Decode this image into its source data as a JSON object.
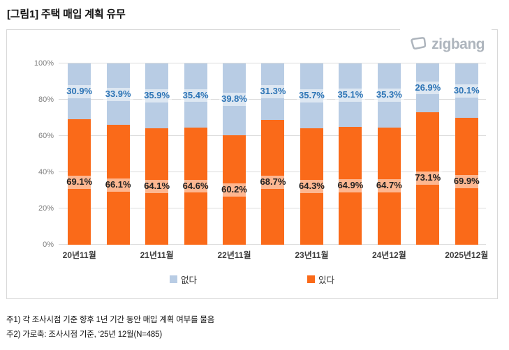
{
  "title": "[그림1] 주택 매입 계획 유무",
  "logo": {
    "brand": "zigbang"
  },
  "colors": {
    "yes_bar": "#fa6a19",
    "no_bar": "#b8cce4",
    "no_label_text": "#2e75b6",
    "yes_label_text": "#222222",
    "logo_gray": "#aeb5bd"
  },
  "chart_data": {
    "type": "bar",
    "stacked": true,
    "unit": "%",
    "title": "주택 매입 계획 유무",
    "x_tick_labels": [
      "20년11월",
      null,
      "21년11월",
      null,
      "22년11월",
      null,
      "23년11월",
      null,
      "24년12월",
      null,
      "2025년12월"
    ],
    "series": [
      {
        "name": "없다",
        "color": "#b8cce4",
        "label_color": "#2e75b6",
        "values": [
          30.9,
          33.9,
          35.9,
          35.4,
          39.8,
          31.3,
          35.7,
          35.1,
          35.3,
          26.9,
          30.1
        ]
      },
      {
        "name": "있다",
        "color": "#fa6a19",
        "label_color": "#222222",
        "values": [
          69.1,
          66.1,
          64.1,
          64.6,
          60.2,
          68.7,
          64.3,
          64.9,
          64.7,
          73.1,
          69.9
        ]
      }
    ],
    "y_ticks": [
      0,
      20,
      40,
      60,
      80,
      100
    ],
    "ylim": [
      0,
      100
    ],
    "grid": true,
    "legend": [
      {
        "label": "없다",
        "color": "#b8cce4"
      },
      {
        "label": "있다",
        "color": "#fa6a19"
      }
    ],
    "legend_position": "bottom"
  },
  "footnotes": [
    "주1) 각 조사시점 기준 향후 1년 기간 동안 매입 계획 여부를 물음",
    "주2) 가로축: 조사시점 기준, ‘25년 12월(N=485)"
  ]
}
